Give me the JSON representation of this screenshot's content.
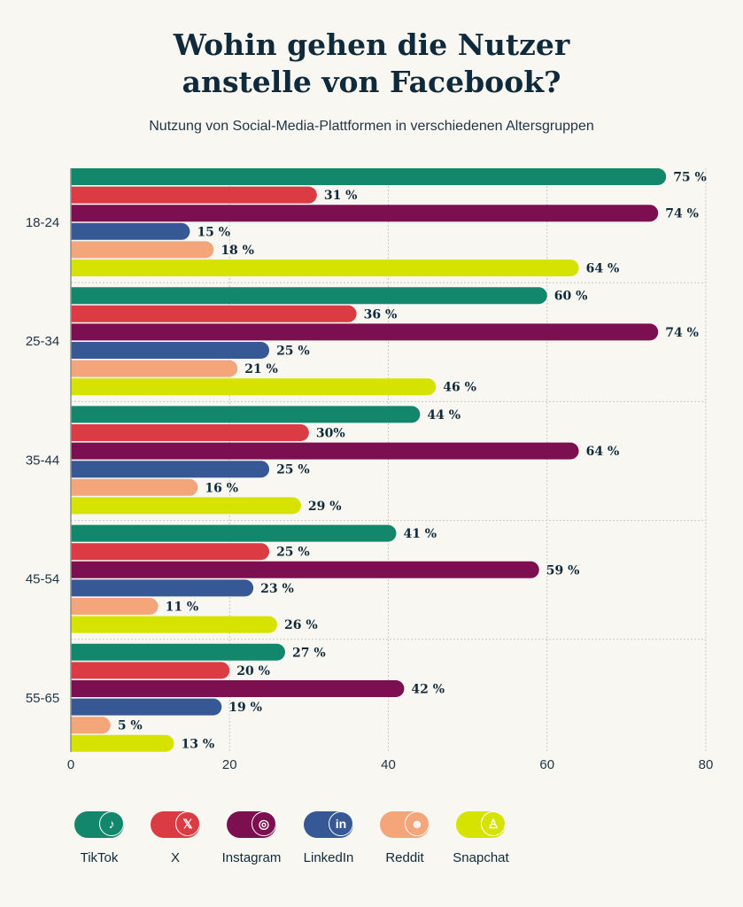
{
  "title_line1": "Wohin gehen die Nutzer",
  "title_line2": "anstelle von Facebook?",
  "subtitle": "Nutzung von Social-Media-Plattformen in verschiedenen Altersgruppen",
  "chart_data": {
    "type": "bar",
    "orientation": "horizontal",
    "title": "Wohin gehen die Nutzer anstelle von Facebook?",
    "subtitle": "Nutzung von Social-Media-Plattformen in verschiedenen Altersgruppen",
    "categories": [
      "18-24",
      "25-34",
      "35-44",
      "45-54",
      "55-65"
    ],
    "xlim": [
      0,
      80
    ],
    "xticks": [
      0,
      20,
      40,
      60,
      80
    ],
    "grid": true,
    "legend_position": "bottom",
    "series": [
      {
        "name": "TikTok",
        "color": "#12876b",
        "icon": "tiktok-icon",
        "values": [
          75,
          60,
          44,
          41,
          27
        ],
        "labels": [
          "75 %",
          "60 %",
          "44 %",
          "41 %",
          "27 %"
        ]
      },
      {
        "name": "X",
        "color": "#db3b42",
        "icon": "x-icon",
        "values": [
          31,
          36,
          30,
          25,
          20
        ],
        "labels": [
          "31 %",
          "36 %",
          "30%",
          "25 %",
          "20 %"
        ]
      },
      {
        "name": "Instagram",
        "color": "#7c0f4f",
        "icon": "instagram-icon",
        "values": [
          74,
          74,
          64,
          59,
          42
        ],
        "labels": [
          "74 %",
          "74 %",
          "64 %",
          "59 %",
          "42 %"
        ]
      },
      {
        "name": "LinkedIn",
        "color": "#365995",
        "icon": "linkedin-icon",
        "values": [
          15,
          25,
          25,
          23,
          19
        ],
        "labels": [
          "15 %",
          "25 %",
          "25 %",
          "23 %",
          "19 %"
        ]
      },
      {
        "name": "Reddit",
        "color": "#f4a57a",
        "icon": "reddit-icon",
        "values": [
          18,
          21,
          16,
          11,
          5
        ],
        "labels": [
          "18 %",
          "21 %",
          "16 %",
          "11 %",
          "5 %"
        ]
      },
      {
        "name": "Snapchat",
        "color": "#d6e300",
        "icon": "snapchat-icon",
        "values": [
          64,
          46,
          29,
          26,
          13
        ],
        "labels": [
          "64 %",
          "46 %",
          "29 %",
          "26 %",
          "13 %"
        ]
      }
    ]
  }
}
